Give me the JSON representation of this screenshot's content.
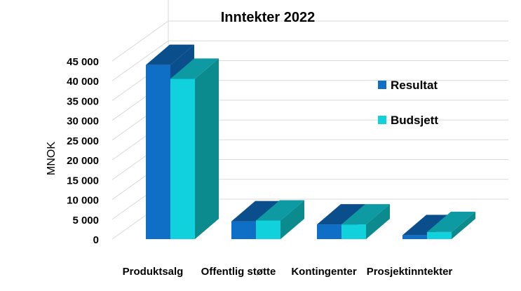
{
  "chart_data": {
    "type": "bar",
    "title": "Inntekter 2022",
    "ylabel": "MNOK",
    "xlabel": "",
    "categories": [
      "Produktsalg",
      "Offentlig støtte",
      "Kontingenter",
      "Prosjektinntekter"
    ],
    "series": [
      {
        "name": "Resultat",
        "values": [
          44000,
          4500,
          3700,
          1000
        ]
      },
      {
        "name": "Budsjett",
        "values": [
          40500,
          4700,
          3700,
          1800
        ]
      }
    ],
    "ylim": [
      0,
      45000
    ],
    "yticks": [
      0,
      5000,
      10000,
      15000,
      20000,
      25000,
      30000,
      35000,
      40000,
      45000
    ],
    "ytick_labels": [
      "0",
      "5 000",
      "10 000",
      "15 000",
      "20 000",
      "25 000",
      "30 000",
      "35 000",
      "40 000",
      "45 000"
    ],
    "grid": true,
    "legend_position": "right",
    "colors": {
      "Resultat": {
        "front": "#0F6FC6",
        "top": "#0A4E8C",
        "side": "#0A4E8C"
      },
      "Budsjett": {
        "front": "#10D1DC",
        "top": "#0D9AA3",
        "side": "#0B8B8E"
      },
      "grid": "#D9D9D9"
    }
  }
}
